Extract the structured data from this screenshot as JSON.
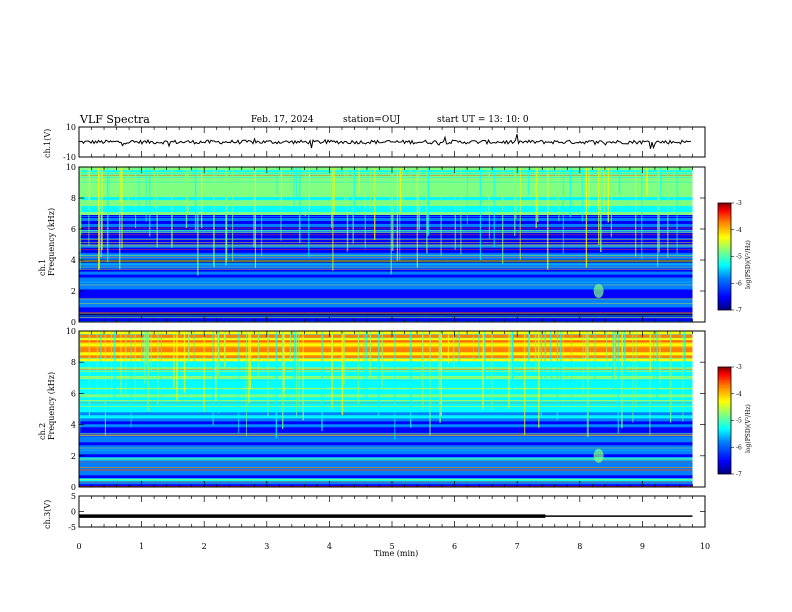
{
  "header": {
    "title": "VLF Spectra",
    "date": "Feb. 17, 2024",
    "station": "station=OUJ",
    "start": "start  UT  =   13: 10: 0"
  },
  "chart_data": [
    {
      "id": "ch1_waveform",
      "type": "line",
      "ylabel": "ch.1(V)",
      "ylim": [
        -10,
        10
      ],
      "y_tick_labels": [
        "10",
        "-10"
      ],
      "xlim": [
        0,
        10
      ],
      "baseline": 0,
      "grid": false
    },
    {
      "id": "ch1_spectrogram",
      "type": "heatmap",
      "ylabel": "ch.1\nFrequency (kHz)",
      "ylim": [
        0,
        10
      ],
      "y_tick_labels": [
        "0",
        "2",
        "4",
        "6",
        "8",
        "10"
      ],
      "xlim": [
        0,
        10
      ],
      "data_extent_min": 9.8,
      "colorbar": {
        "label": "log(PSD)(V²/Hz)",
        "range": [
          -7,
          -3
        ],
        "tick_labels": [
          "-3",
          "-4",
          "-5",
          "-6",
          "-7"
        ]
      }
    },
    {
      "id": "ch2_spectrogram",
      "type": "heatmap",
      "ylabel": "ch.2\nFrequency (kHz)",
      "ylim": [
        0,
        10
      ],
      "y_tick_labels": [
        "0",
        "2",
        "4",
        "6",
        "8",
        "10"
      ],
      "xlim": [
        0,
        10
      ],
      "data_extent_min": 9.8,
      "colorbar": {
        "label": "log(PSD)(V²/Hz)",
        "range": [
          -7,
          -3
        ],
        "tick_labels": [
          "-3",
          "-4",
          "-5",
          "-6",
          "-7"
        ]
      }
    },
    {
      "id": "ch3_trace",
      "type": "line",
      "ylabel": "ch.3(V)",
      "ylim": [
        -5,
        5
      ],
      "y_tick_labels": [
        "5",
        "0",
        "-5"
      ],
      "xlim": [
        0,
        10
      ],
      "x": [
        0,
        7.45,
        9.8
      ],
      "y": [
        -1.5,
        -1.5,
        -1.5
      ],
      "note_thick_until": 7.45
    }
  ],
  "xaxis": {
    "label": "Time (min)",
    "tick_labels": [
      "0",
      "1",
      "2",
      "3",
      "4",
      "5",
      "6",
      "7",
      "8",
      "9",
      "10"
    ]
  },
  "colors": {
    "scale": [
      "#000080",
      "#0000ff",
      "#0080ff",
      "#00ffff",
      "#80ff80",
      "#ffff00",
      "#ff8000",
      "#ff0000",
      "#800000"
    ]
  }
}
